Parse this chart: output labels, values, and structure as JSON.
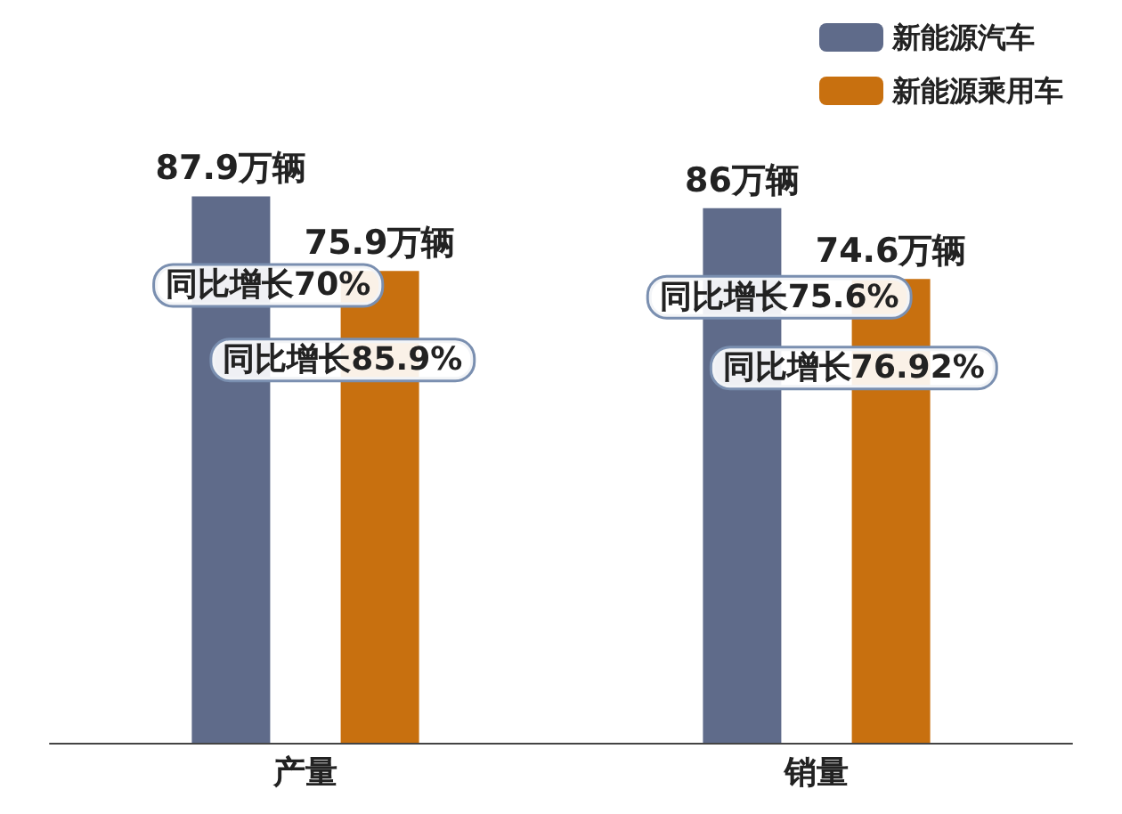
{
  "chart_data": {
    "type": "bar",
    "categories": [
      "产量",
      "销量"
    ],
    "series": [
      {
        "name": "新能源汽车",
        "color": "#5f6b8a",
        "values": [
          87.9,
          86
        ],
        "value_labels": [
          "87.9万辆",
          "86万辆"
        ]
      },
      {
        "name": "新能源乘用车",
        "color": "#c8700f",
        "values": [
          75.9,
          74.6
        ],
        "value_labels": [
          "75.9万辆",
          "74.6万辆"
        ]
      }
    ],
    "annotations": [
      "同比增长70%",
      "同比增长85.9%",
      "同比增长75.6%",
      "同比增长76.92%"
    ],
    "legend": "top right",
    "tick_labels": "x"
  }
}
